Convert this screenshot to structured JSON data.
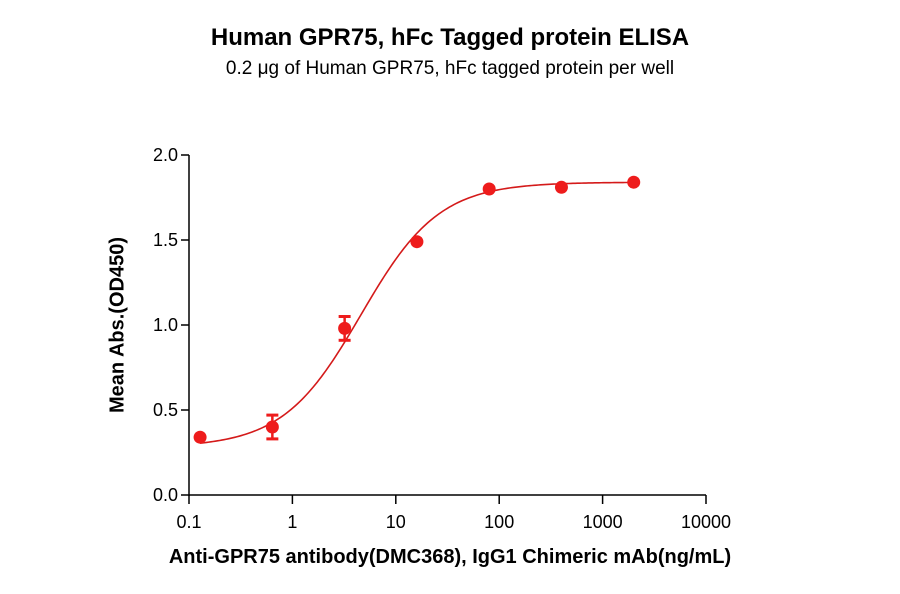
{
  "chart_data": {
    "type": "scatter",
    "title": "Human GPR75, hFc Tagged protein ELISA",
    "subtitle": "0.2 μg of Human GPR75, hFc tagged protein per well",
    "xlabel": "Anti-GPR75 antibody(DMC368), IgG1 Chimeric mAb(ng/mL)",
    "ylabel": "Mean Abs.(OD450)",
    "xscale": "log",
    "xlim": [
      0.1,
      10000
    ],
    "ylim": [
      0.0,
      2.0
    ],
    "x_ticks": [
      "0.1",
      "1",
      "10",
      "100",
      "1000",
      "10000"
    ],
    "y_ticks": [
      "0.0",
      "0.5",
      "1.0",
      "1.5",
      "2.0"
    ],
    "grid": false,
    "legend": null,
    "color": "#ee1c1c",
    "fit": "4-parameter logistic curve",
    "series": [
      {
        "name": "Anti-GPR75 antibody(DMC368)",
        "x": [
          0.128,
          0.64,
          3.2,
          16,
          80,
          400,
          2000
        ],
        "values": [
          0.34,
          0.4,
          0.98,
          1.49,
          1.8,
          1.81,
          1.84
        ],
        "error": [
          0.01,
          0.07,
          0.07,
          0.01,
          0.01,
          0.01,
          0.01
        ]
      }
    ],
    "fit_params": {
      "bottom": 0.28,
      "top": 1.84,
      "ec50": 4.6,
      "hill": 1.15
    }
  }
}
